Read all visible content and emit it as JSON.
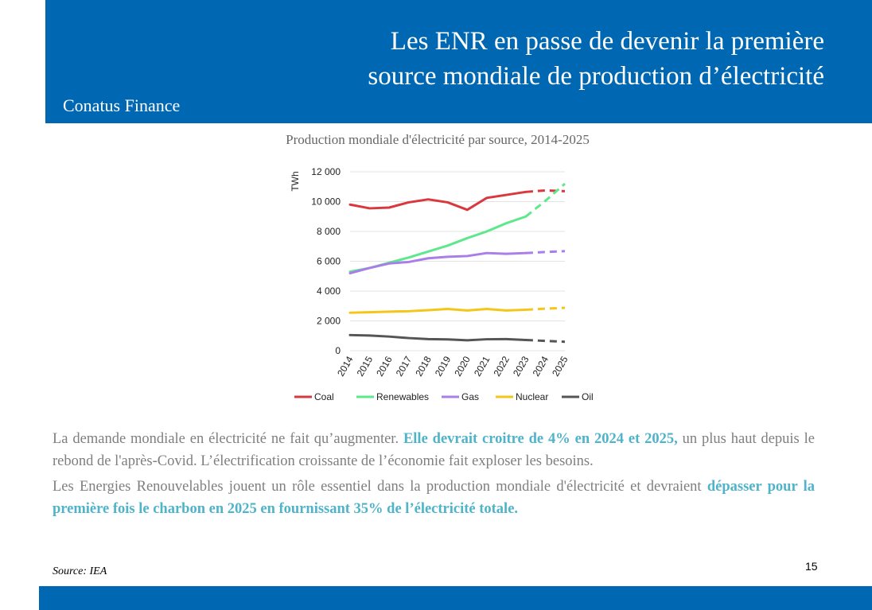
{
  "header": {
    "title_line1": "Les ENR en passe de devenir la première",
    "title_line2": "source mondiale de production d’électricité",
    "brand": "Conatus Finance"
  },
  "colors": {
    "header_bg": "#0068b3",
    "highlight": "#4fb3c9",
    "coal": "#d9393e",
    "renewables": "#5ee88c",
    "gas": "#a97ee8",
    "nuclear": "#f5c518",
    "oil": "#555555"
  },
  "chart_data": {
    "type": "line",
    "title": "Production mondiale d'électricité par source, 2014-2025",
    "ylabel": "TWh",
    "ylim": [
      0,
      12000
    ],
    "yticks": [
      0,
      2000,
      4000,
      6000,
      8000,
      10000,
      12000
    ],
    "ytick_labels": [
      "0",
      "2 000",
      "4 000",
      "6 000",
      "8 000",
      "10 000",
      "12 000"
    ],
    "x": [
      "2014",
      "2015",
      "2016",
      "2017",
      "2018",
      "2019",
      "2020",
      "2021",
      "2022",
      "2023",
      "2024",
      "2025"
    ],
    "forecast_from": "2023",
    "legend_position": "bottom",
    "grid": "horizontal",
    "series": [
      {
        "name": "Coal",
        "values": [
          9800,
          9550,
          9600,
          9950,
          10150,
          9950,
          9450,
          10250,
          10450,
          10650,
          10750,
          10700
        ]
      },
      {
        "name": "Renewables",
        "values": [
          5300,
          5550,
          5900,
          6250,
          6650,
          7050,
          7550,
          8000,
          8550,
          9000,
          10050,
          11200
        ]
      },
      {
        "name": "Gas",
        "values": [
          5200,
          5550,
          5850,
          5950,
          6200,
          6300,
          6350,
          6550,
          6500,
          6550,
          6620,
          6680
        ]
      },
      {
        "name": "Nuclear",
        "values": [
          2550,
          2580,
          2620,
          2650,
          2720,
          2800,
          2700,
          2800,
          2700,
          2750,
          2820,
          2880
        ]
      },
      {
        "name": "Oil",
        "values": [
          1050,
          1020,
          950,
          850,
          780,
          760,
          700,
          770,
          780,
          720,
          660,
          600
        ]
      }
    ]
  },
  "body": {
    "p1_part1": "La demande mondiale en électricité ne fait qu’augmenter. ",
    "p1_highlight": "Elle devrait croitre de 4% en 2024 et 2025,",
    "p1_part2": " un plus haut depuis le rebond de l'après-Covid. L’électrification croissante de l’économie fait exploser les besoins.",
    "p2_part1": "Les Energies Renouvelables jouent un rôle essentiel dans la production mondiale d'électricité et devraient ",
    "p2_highlight": "dépasser pour la première fois le charbon en 2025 en fournissant 35% de l’électricité totale."
  },
  "source": "Source: IEA",
  "page_number": "15"
}
